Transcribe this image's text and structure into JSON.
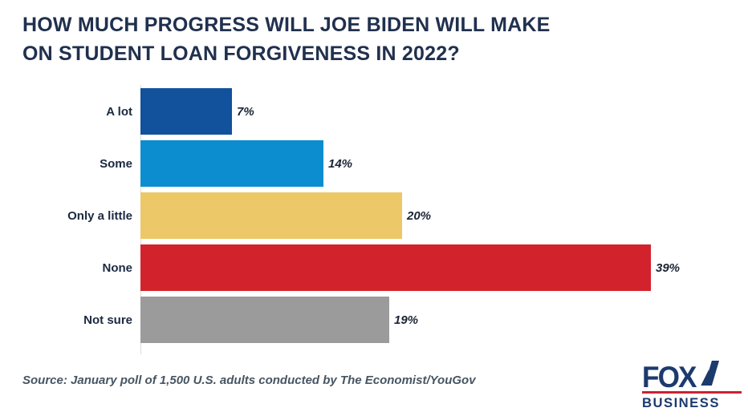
{
  "chart_data": {
    "type": "bar",
    "orientation": "horizontal",
    "title": "HOW MUCH PROGRESS WILL JOE BIDEN WILL MAKE ON STUDENT LOAN FORGIVENESS IN 2022?",
    "categories": [
      "A lot",
      "Some",
      "Only a little",
      "None",
      "Not sure"
    ],
    "values": [
      7,
      14,
      20,
      39,
      19
    ],
    "value_labels": [
      "7%",
      "14%",
      "20%",
      "39%",
      "19%"
    ],
    "bar_colors": [
      "#12519c",
      "#0b8dd0",
      "#edc868",
      "#d2232c",
      "#9b9b9b"
    ],
    "xlabel": "",
    "ylabel": "",
    "grid": false,
    "legend": false,
    "source": "Source: January poll of 1,500 U.S. adults conducted by The Economist/YouGov"
  },
  "colors": {
    "title_navy": "#20304e",
    "label_navy": "#1b2940",
    "value_navy": "#1b2435",
    "source_gray": "#475562",
    "axis_gray": "#dcdcdc",
    "logo_navy": "#1c3a6e",
    "logo_red": "#cc2131",
    "background": "#ffffff"
  },
  "logo": {
    "line1": "FOX",
    "line2": "BUSINESS"
  }
}
